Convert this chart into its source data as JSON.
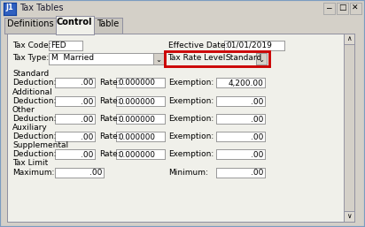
{
  "title_bar_text": "Tax Tables",
  "title_bar_bg": "#a8bcd4",
  "window_bg": "#d4d0c8",
  "tab_active": "Control",
  "tabs": [
    "Definitions",
    "Control",
    "Table"
  ],
  "content_bg": "#ece9d8",
  "field_bg": "#ffffff",
  "label_color": "#000000",
  "highlight_color": "#cc0000",
  "tax_code_label": "Tax Code:",
  "tax_code_value": "FED",
  "effective_date_label": "Effective Date:",
  "effective_date_value": "01/01/2019",
  "tax_type_label": "Tax Type:",
  "tax_type_value": "M  Married",
  "tax_rate_level_label": "Tax Rate Level:",
  "tax_rate_level_value": "Standard",
  "rows": [
    {
      "section": "Standard",
      "deduction": ".00",
      "rate": "0.000000",
      "exemption": "4,200.00"
    },
    {
      "section": "Additional",
      "deduction": ".00",
      "rate": "0.000000",
      "exemption": ".00"
    },
    {
      "section": "Other",
      "deduction": ".00",
      "rate": "0.000000",
      "exemption": ".00"
    },
    {
      "section": "Auxiliary",
      "deduction": ".00",
      "rate": "0.000000",
      "exemption": ".00"
    },
    {
      "section": "Supplemental",
      "deduction": ".00",
      "rate": "0.000000",
      "exemption": ".00"
    }
  ],
  "tax_limit_label": "Tax Limit",
  "maximum_label": "Maximum:",
  "maximum_value": ".00",
  "minimum_label": "Minimum:",
  "minimum_value": ".00",
  "fig_w": 412,
  "fig_h": 257
}
